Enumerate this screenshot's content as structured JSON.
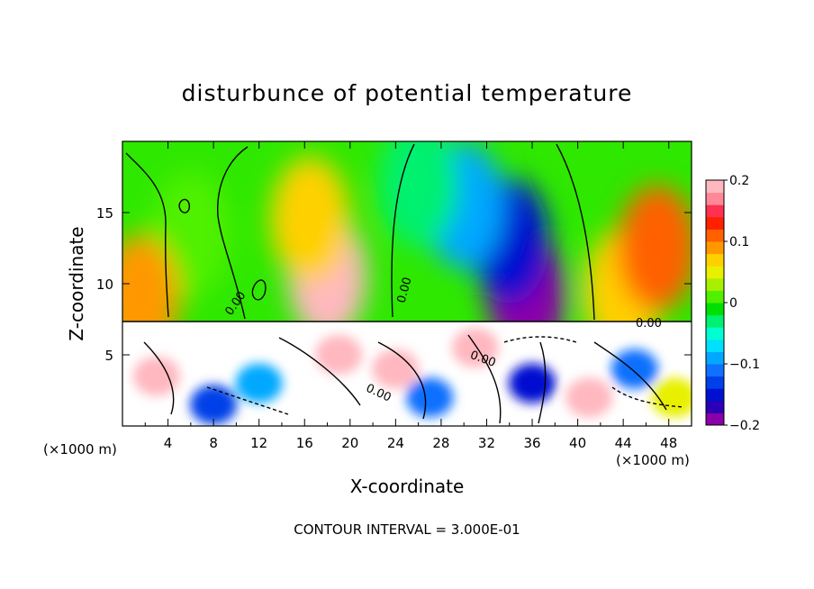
{
  "chart_data": {
    "type": "heatmap",
    "title": "disturbunce of potential temperature",
    "xlabel": "X-coordinate",
    "ylabel": "Z-coordinate",
    "x_unit": "(×1000 m)",
    "x_unit_right": "(×1000 m)",
    "xlim": [
      0,
      50
    ],
    "ylim": [
      0,
      20
    ],
    "x_ticks": [
      4,
      8,
      12,
      16,
      20,
      24,
      28,
      32,
      36,
      40,
      44,
      48
    ],
    "x_tick_labels": [
      "4",
      "8",
      "12",
      "16",
      "20",
      "24",
      "28",
      "32",
      "36",
      "40",
      "44",
      "48"
    ],
    "y_ticks": [
      5,
      10,
      15
    ],
    "y_tick_labels": [
      "5",
      "10",
      "15"
    ],
    "colorbar": {
      "range": [
        -0.2,
        0.2
      ],
      "ticks": [
        0.2,
        0.1,
        0,
        -0.1,
        -0.2
      ],
      "tick_labels": [
        "0.2",
        "0.1",
        "0",
        "−0.1",
        "−0.2"
      ],
      "colors": [
        "#8a00a8",
        "#2a00b8",
        "#0010d0",
        "#0040e8",
        "#1070ff",
        "#00a8ff",
        "#00e0ff",
        "#00ffd0",
        "#00f070",
        "#00e000",
        "#50f000",
        "#a8f000",
        "#e8f000",
        "#ffd000",
        "#ff9800",
        "#ff6000",
        "#ff2000",
        "#ff3050",
        "#ff8898",
        "#ffb8c0"
      ]
    },
    "contour_labels": [
      "0.00",
      "0.00",
      "0.00",
      "0.00",
      "0.00"
    ],
    "upper_blobs": [
      {
        "x": 18.0,
        "z": 10.5,
        "value": 0.18
      },
      {
        "x": 16.5,
        "z": 14.5,
        "value": 0.06
      },
      {
        "x": 35.5,
        "z": 9.2,
        "value": -0.2
      },
      {
        "x": 34.0,
        "z": 13.0,
        "value": -0.15
      },
      {
        "x": 30.0,
        "z": 15.5,
        "value": -0.09
      },
      {
        "x": 26.0,
        "z": 17.0,
        "value": -0.03
      },
      {
        "x": 44.0,
        "z": 9.5,
        "value": 0.06
      },
      {
        "x": 47.0,
        "z": 12.5,
        "value": 0.1
      },
      {
        "x": 6.0,
        "z": 13.5,
        "value": 0.02
      },
      {
        "x": 1.5,
        "z": 9.0,
        "value": 0.08
      }
    ],
    "lower_blobs": [
      {
        "x": 3.0,
        "z": 3.5,
        "value": 0.2
      },
      {
        "x": 8.0,
        "z": 1.5,
        "value": -0.14
      },
      {
        "x": 12.0,
        "z": 3.0,
        "value": -0.1
      },
      {
        "x": 19.0,
        "z": 5.0,
        "value": 0.2
      },
      {
        "x": 24.0,
        "z": 4.0,
        "value": 0.2
      },
      {
        "x": 27.0,
        "z": 2.0,
        "value": -0.12
      },
      {
        "x": 31.0,
        "z": 5.5,
        "value": 0.2
      },
      {
        "x": 36.0,
        "z": 3.0,
        "value": -0.16
      },
      {
        "x": 41.0,
        "z": 2.0,
        "value": 0.2
      },
      {
        "x": 45.0,
        "z": 4.0,
        "value": -0.12
      },
      {
        "x": 48.5,
        "z": 2.0,
        "value": 0.04
      }
    ]
  },
  "footer": {
    "contour_interval": "CONTOUR INTERVAL = 3.000E-01"
  }
}
